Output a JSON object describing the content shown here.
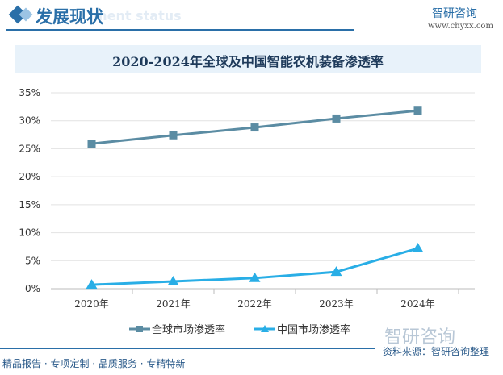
{
  "header": {
    "title": "发展现状",
    "ghost": "ment status",
    "logo": "智研咨询",
    "url": "www.chyxx.com"
  },
  "footer": {
    "slogan": "精品报告 · 专项定制 · 品质服务 · 专精特新",
    "source": "资料来源：智研咨询整理",
    "watermark": "智研咨询"
  },
  "chart_data": {
    "type": "line",
    "title": "2020-2024年全球及中国智能农机装备渗透率",
    "categories": [
      "2020年",
      "2021年",
      "2022年",
      "2023年",
      "2024年"
    ],
    "ylim": [
      0,
      35
    ],
    "yticks": [
      "0%",
      "5%",
      "10%",
      "15%",
      "20%",
      "25%",
      "30%",
      "35%"
    ],
    "grid": true,
    "legend": "bottom",
    "series": [
      {
        "name": "全球市场渗透率",
        "values": [
          25.9,
          27.4,
          28.8,
          30.4,
          31.8
        ],
        "color": "#5b8ca3",
        "marker": "square"
      },
      {
        "name": "中国市场渗透率",
        "values": [
          0.7,
          1.3,
          1.9,
          3.0,
          7.2
        ],
        "color": "#29aee6",
        "marker": "triangle"
      }
    ]
  }
}
